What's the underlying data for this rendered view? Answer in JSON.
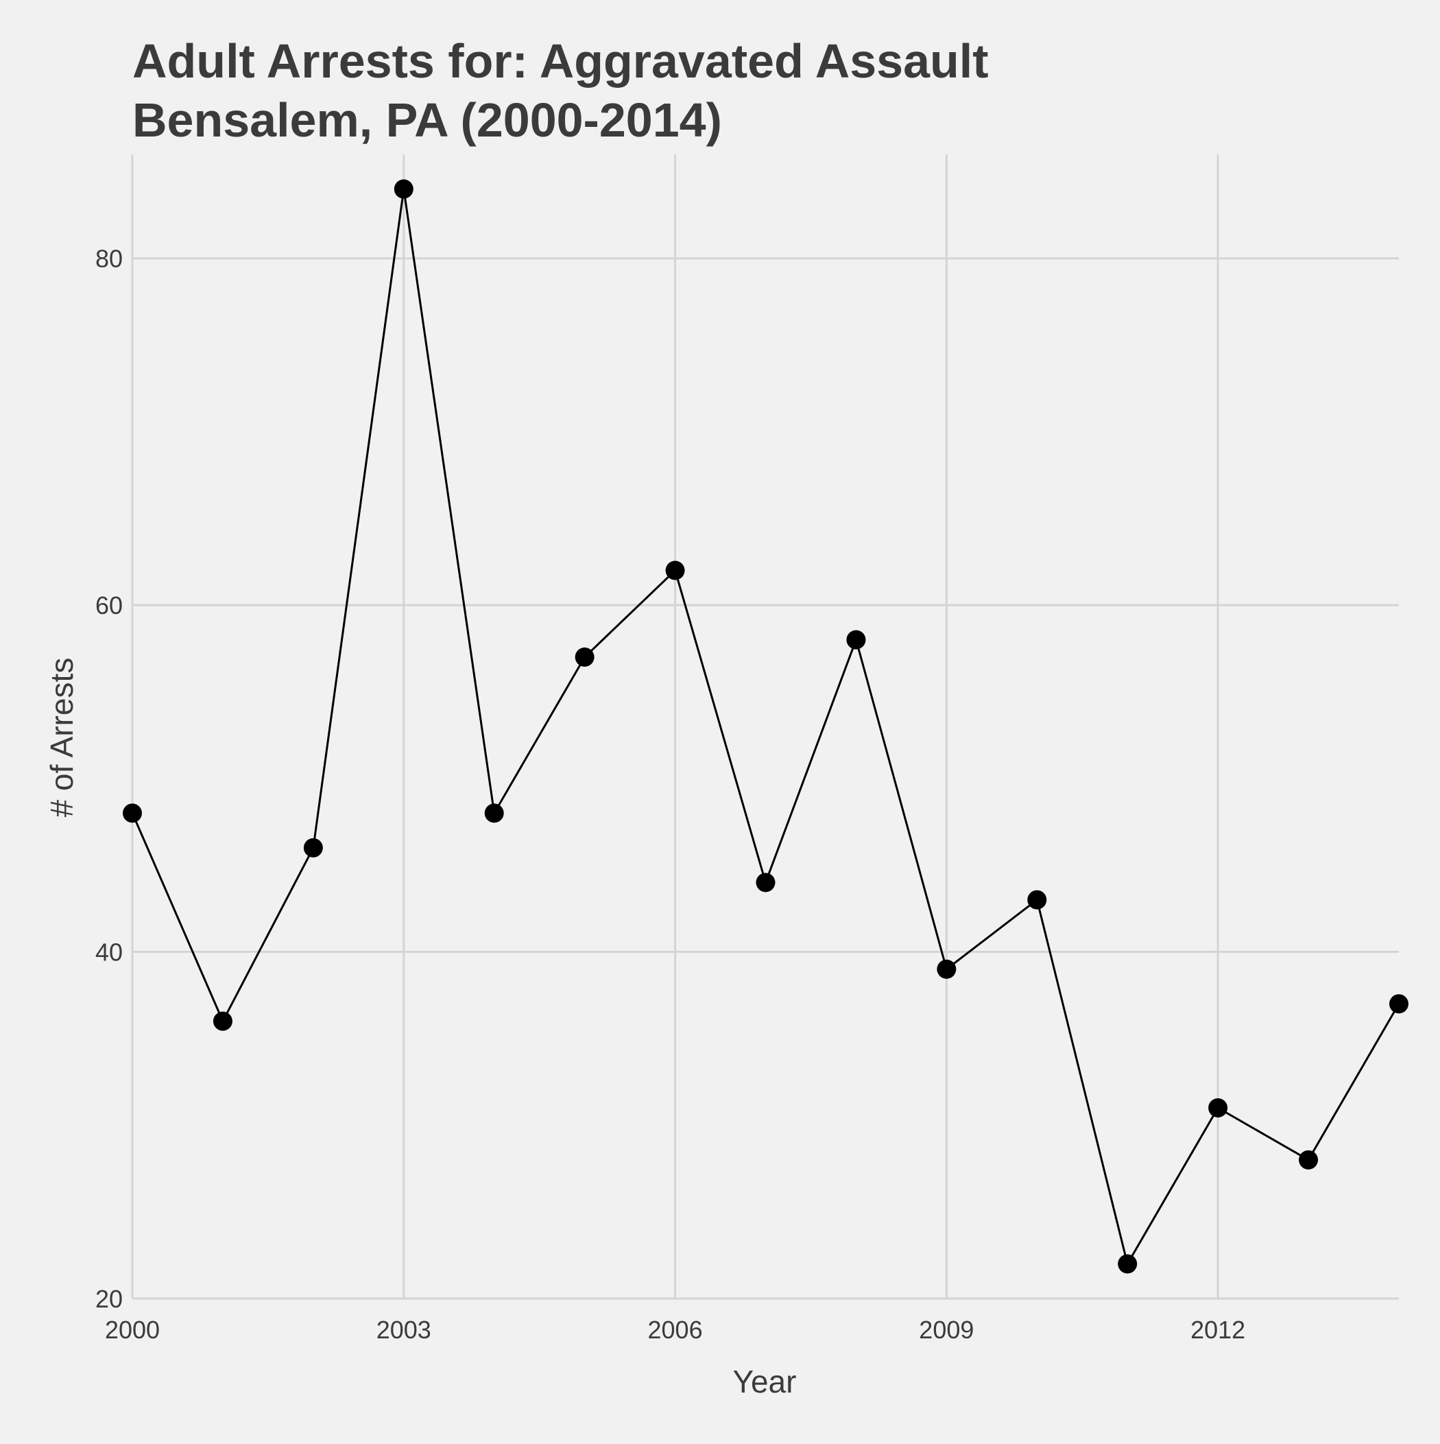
{
  "chart_data": {
    "type": "line",
    "title": "Adult Arrests for: Aggravated Assault",
    "subtitle": "Bensalem, PA (2000-2014)",
    "xlabel": "Year",
    "ylabel": "# of Arrests",
    "xlim": [
      2000,
      2014
    ],
    "ylim": [
      20,
      86
    ],
    "x_ticks": [
      2000,
      2003,
      2006,
      2009,
      2012
    ],
    "y_ticks": [
      20,
      40,
      60,
      80
    ],
    "grid": true,
    "legend": "none",
    "series": [
      {
        "color": "#000000",
        "points": [
          {
            "x": 2000,
            "y": 48
          },
          {
            "x": 2001,
            "y": 36
          },
          {
            "x": 2002,
            "y": 46
          },
          {
            "x": 2003,
            "y": 84
          },
          {
            "x": 2004,
            "y": 48
          },
          {
            "x": 2005,
            "y": 57
          },
          {
            "x": 2006,
            "y": 62
          },
          {
            "x": 2007,
            "y": 44
          },
          {
            "x": 2008,
            "y": 58
          },
          {
            "x": 2009,
            "y": 39
          },
          {
            "x": 2010,
            "y": 43
          },
          {
            "x": 2011,
            "y": 22
          },
          {
            "x": 2012,
            "y": 31
          },
          {
            "x": 2013,
            "y": 28
          },
          {
            "x": 2014,
            "y": 37
          }
        ]
      }
    ]
  }
}
